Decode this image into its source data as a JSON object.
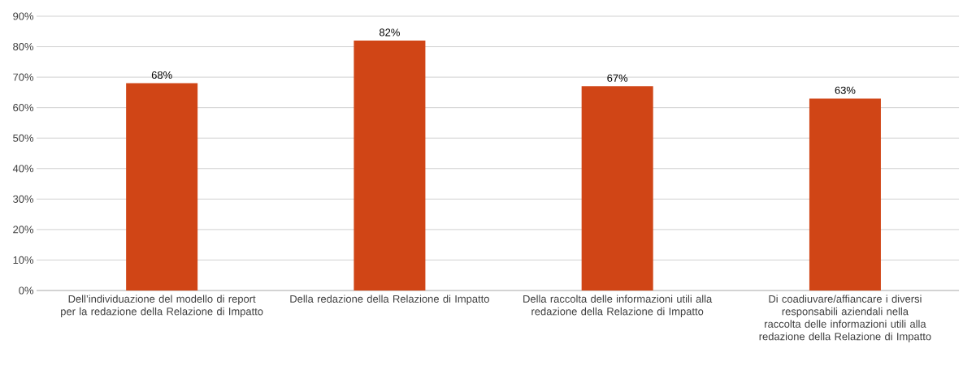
{
  "chart_data": {
    "type": "bar",
    "categories": [
      "Dell’individuazione del modello di report per la redazione della Relazione di Impatto",
      "Della redazione della Relazione di Impatto",
      "Della raccolta delle informazioni utili alla redazione della Relazione di Impatto",
      "Di coadiuvare/affiancare i diversi responsabili aziendali nella raccolta delle informazioni utili alla redazione della Relazione di Impatto"
    ],
    "values": [
      68,
      82,
      67,
      63
    ],
    "value_labels": [
      "68%",
      "82%",
      "67%",
      "63%"
    ],
    "color": "#d04516",
    "ylim": [
      0,
      90
    ],
    "yticks": [
      {
        "value": 0,
        "label": "0%"
      },
      {
        "value": 10,
        "label": "10%"
      },
      {
        "value": 20,
        "label": "20%"
      },
      {
        "value": 30,
        "label": "30%"
      },
      {
        "value": 40,
        "label": "40%"
      },
      {
        "value": 50,
        "label": "50%"
      },
      {
        "value": 60,
        "label": "60%"
      },
      {
        "value": 70,
        "label": "70%"
      },
      {
        "value": 80,
        "label": "80%"
      },
      {
        "value": 90,
        "label": "90%"
      }
    ],
    "grid": "y"
  }
}
